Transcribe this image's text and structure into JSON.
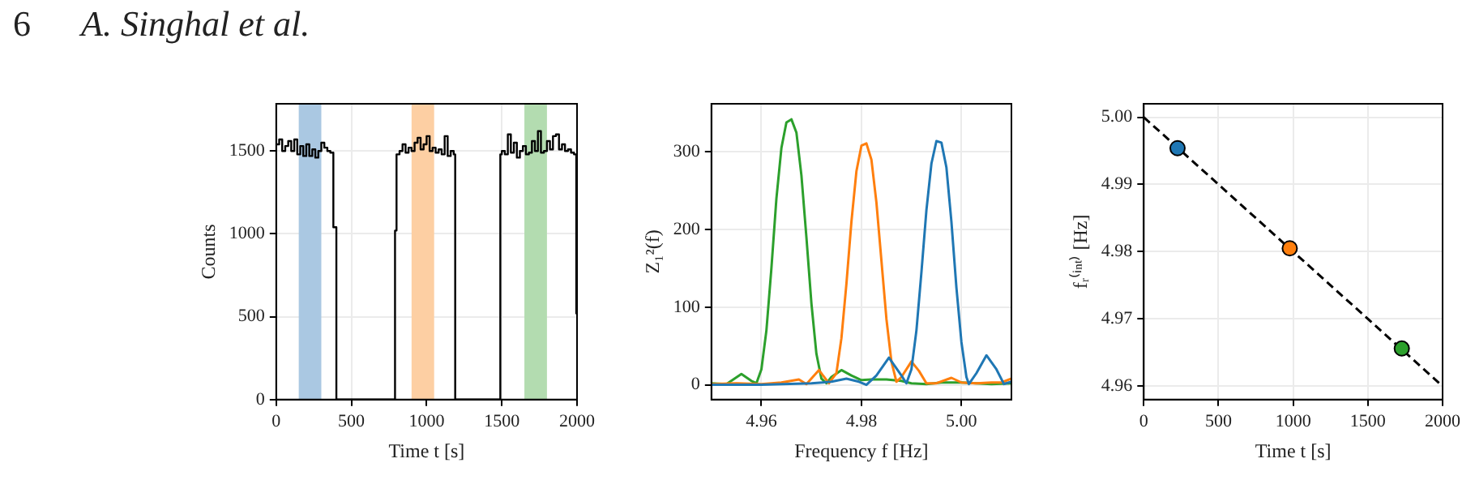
{
  "chart_data": [
    {
      "type": "step",
      "annotations": [
        "6",
        "A. Singhal et al."
      ],
      "xlabel": "Time t [s]",
      "ylabel": "Counts",
      "xlim": [
        0,
        2000
      ],
      "xticks": [
        0,
        500,
        1000,
        1500,
        2000
      ],
      "ylim": [
        0,
        1785
      ],
      "yticks": [
        0,
        500,
        1000,
        1500
      ],
      "grid": true,
      "legend": false,
      "bands": [
        {
          "axis": "x",
          "from": 150,
          "to": 300,
          "color": "#aac8e2"
        },
        {
          "axis": "x",
          "from": 900,
          "to": 1050,
          "color": "#fdcfa3"
        },
        {
          "axis": "x",
          "from": 1650,
          "to": 1800,
          "color": "#b3dcb0"
        }
      ],
      "series": [
        {
          "color": "#000000",
          "x": [
            0,
            20,
            40,
            60,
            80,
            100,
            120,
            140,
            160,
            180,
            200,
            220,
            240,
            260,
            280,
            300,
            320,
            340,
            360,
            380,
            400,
            790,
            800,
            820,
            840,
            860,
            880,
            900,
            920,
            940,
            960,
            980,
            1000,
            1020,
            1040,
            1060,
            1080,
            1100,
            1120,
            1140,
            1160,
            1180,
            1190,
            1490,
            1500,
            1520,
            1540,
            1560,
            1580,
            1600,
            1620,
            1640,
            1660,
            1680,
            1700,
            1720,
            1740,
            1760,
            1780,
            1800,
            1820,
            1840,
            1860,
            1880,
            1900,
            1920,
            1940,
            1960,
            1980,
            1995,
            2000
          ],
          "values": [
            1540,
            1570,
            1500,
            1530,
            1560,
            1500,
            1570,
            1480,
            1530,
            1470,
            1540,
            1470,
            1510,
            1460,
            1500,
            1550,
            1520,
            1500,
            1490,
            1040,
            0,
            1020,
            1480,
            1500,
            1540,
            1490,
            1520,
            1500,
            1550,
            1580,
            1510,
            1540,
            1590,
            1500,
            1520,
            1490,
            1510,
            1480,
            1590,
            1470,
            1500,
            1480,
            0,
            1480,
            1500,
            1480,
            1600,
            1490,
            1550,
            1460,
            1500,
            1530,
            1480,
            1490,
            1560,
            1500,
            1620,
            1490,
            1500,
            1560,
            1510,
            1590,
            1600,
            1510,
            1540,
            1500,
            1510,
            1490,
            1480,
            520,
            520
          ]
        }
      ]
    },
    {
      "type": "line",
      "xlabel": "Frequency f [Hz]",
      "ylabel": "Z₁²(f)",
      "xlim": [
        4.95,
        5.01
      ],
      "xticks": [
        4.96,
        4.98,
        {
          "value": 5.0,
          "label": "5.00"
        }
      ],
      "ylim": [
        -19,
        362
      ],
      "yticks": [
        0,
        100,
        200,
        300
      ],
      "grid": true,
      "legend": false,
      "series": [
        {
          "color": "#1f77b4",
          "x": [
            4.95,
            4.96,
            4.97,
            4.974,
            4.977,
            4.9795,
            4.981,
            4.983,
            4.9855,
            4.988,
            4.989,
            4.99,
            4.991,
            4.992,
            4.993,
            4.994,
            4.995,
            4.996,
            4.997,
            4.998,
            4.999,
            5.0,
            5.001,
            5.0015,
            5.003,
            5.005,
            5.007,
            5.0085,
            5.01
          ],
          "values": [
            0,
            0,
            2,
            4,
            8,
            4,
            0,
            12,
            35,
            12,
            2,
            20,
            70,
            145,
            225,
            285,
            314,
            312,
            280,
            210,
            125,
            55,
            10,
            1,
            15,
            38,
            20,
            1,
            4
          ]
        },
        {
          "color": "#ff7f0e",
          "x": [
            4.95,
            4.955,
            4.96,
            4.964,
            4.9675,
            4.969,
            4.9715,
            4.9735,
            4.975,
            4.976,
            4.977,
            4.978,
            4.979,
            4.98,
            4.981,
            4.982,
            4.983,
            4.984,
            4.985,
            4.986,
            4.987,
            4.988,
            4.99,
            4.9915,
            4.993,
            4.995,
            4.998,
            5.0,
            5.003,
            5.006,
            5.008,
            5.01
          ],
          "values": [
            1,
            2,
            1,
            3,
            7,
            1,
            19,
            2,
            15,
            60,
            130,
            210,
            275,
            308,
            311,
            290,
            235,
            160,
            85,
            30,
            4,
            10,
            30,
            18,
            2,
            2,
            9,
            3,
            2,
            3,
            3,
            8
          ]
        },
        {
          "color": "#2ca02c",
          "x": [
            4.95,
            4.953,
            4.956,
            4.958,
            4.959,
            4.96,
            4.961,
            4.962,
            4.963,
            4.964,
            4.965,
            4.966,
            4.967,
            4.968,
            4.969,
            4.97,
            4.971,
            4.972,
            4.973,
            4.974,
            4.976,
            4.978,
            4.98,
            4.982,
            4.985,
            4.988,
            4.99,
            4.993,
            4.996,
            5.0,
            5.003,
            5.006,
            5.01
          ],
          "values": [
            2,
            1,
            14,
            5,
            2,
            20,
            70,
            150,
            240,
            305,
            338,
            342,
            325,
            270,
            190,
            105,
            40,
            8,
            2,
            10,
            19,
            12,
            6,
            7,
            7,
            5,
            2,
            1,
            3,
            3,
            2,
            1,
            2
          ]
        }
      ]
    },
    {
      "type": "scatter",
      "xlabel": "Time t [s]",
      "ylabel": "fᵣ⁽ⁱⁿᵗ⁾ [Hz]",
      "xlim": [
        0,
        2000
      ],
      "xticks": [
        0,
        500,
        1000,
        1500,
        2000
      ],
      "ylim": [
        4.958,
        5.002
      ],
      "yticks": [
        {
          "value": 4.96,
          "label": "4.96"
        },
        4.97,
        4.98,
        4.99,
        {
          "value": 5.0,
          "label": "5.00"
        }
      ],
      "grid": true,
      "legend": false,
      "series": [
        {
          "type": "line",
          "color": "#000000",
          "line_style": "dashed",
          "x": [
            0,
            2000
          ],
          "values": [
            5.0,
            4.96
          ]
        },
        {
          "type": "scatter",
          "marker": "circle",
          "colors": [
            "#1f77b4",
            "#ff7f0e",
            "#2ca02c"
          ],
          "x": [
            226,
            977,
            1727
          ],
          "values": [
            4.9954,
            4.9805,
            4.9656
          ]
        }
      ]
    }
  ]
}
